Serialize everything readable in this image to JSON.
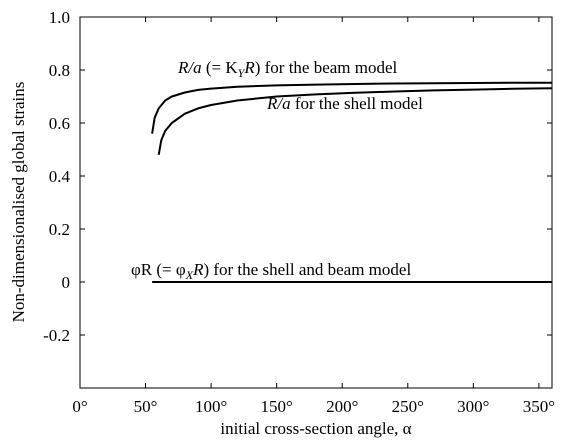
{
  "chart_data": {
    "type": "line",
    "xlabel": "initial cross-section angle, α",
    "ylabel": "Non-dimensionalised global strains",
    "xlim": [
      0,
      360
    ],
    "ylim": [
      -0.4,
      1.0
    ],
    "grid": false,
    "x_ticks": [
      0,
      50,
      100,
      150,
      200,
      250,
      300,
      350
    ],
    "x_tick_labels": [
      "0°",
      "50°",
      "100°",
      "150°",
      "200°",
      "250°",
      "300°",
      "350°"
    ],
    "y_ticks": [
      -0.2,
      0,
      0.2,
      0.4,
      0.6,
      0.8,
      1.0
    ],
    "y_tick_labels": [
      "-0.2",
      "0",
      "0.2",
      "0.4",
      "0.6",
      "0.8",
      "1.0"
    ],
    "series": [
      {
        "x": [
          55,
          57,
          60,
          65,
          70,
          80,
          90,
          100,
          120,
          150,
          180,
          210,
          240,
          270,
          300,
          330,
          360
        ],
        "y": [
          0.56,
          0.62,
          0.655,
          0.685,
          0.7,
          0.715,
          0.725,
          0.73,
          0.737,
          0.742,
          0.745,
          0.747,
          0.749,
          0.75,
          0.751,
          0.752,
          0.752
        ]
      },
      {
        "x": [
          60,
          62,
          65,
          70,
          80,
          90,
          100,
          120,
          150,
          180,
          210,
          240,
          270,
          300,
          330,
          360
        ],
        "y": [
          0.48,
          0.535,
          0.57,
          0.6,
          0.635,
          0.655,
          0.668,
          0.685,
          0.7,
          0.708,
          0.714,
          0.719,
          0.723,
          0.726,
          0.729,
          0.731
        ]
      },
      {
        "x": [
          55,
          360
        ],
        "y": [
          0.0,
          0.0
        ]
      }
    ],
    "annotations": [
      {
        "parts": [
          {
            "t": "R/a",
            "i": true
          },
          {
            "t": " (= K"
          },
          {
            "t": "Y",
            "i": true,
            "sub": true
          },
          {
            "t": "R",
            "i": true
          },
          {
            "t": ") for the beam model"
          }
        ]
      },
      {
        "parts": [
          {
            "t": "R/a",
            "i": true
          },
          {
            "t": " for the shell model"
          }
        ]
      },
      {
        "parts": [
          {
            "t": "φR (= φ"
          },
          {
            "t": "X",
            "i": true,
            "sub": true
          },
          {
            "t": "R",
            "i": true
          },
          {
            "t": ") for the shell and beam model"
          }
        ]
      }
    ]
  }
}
